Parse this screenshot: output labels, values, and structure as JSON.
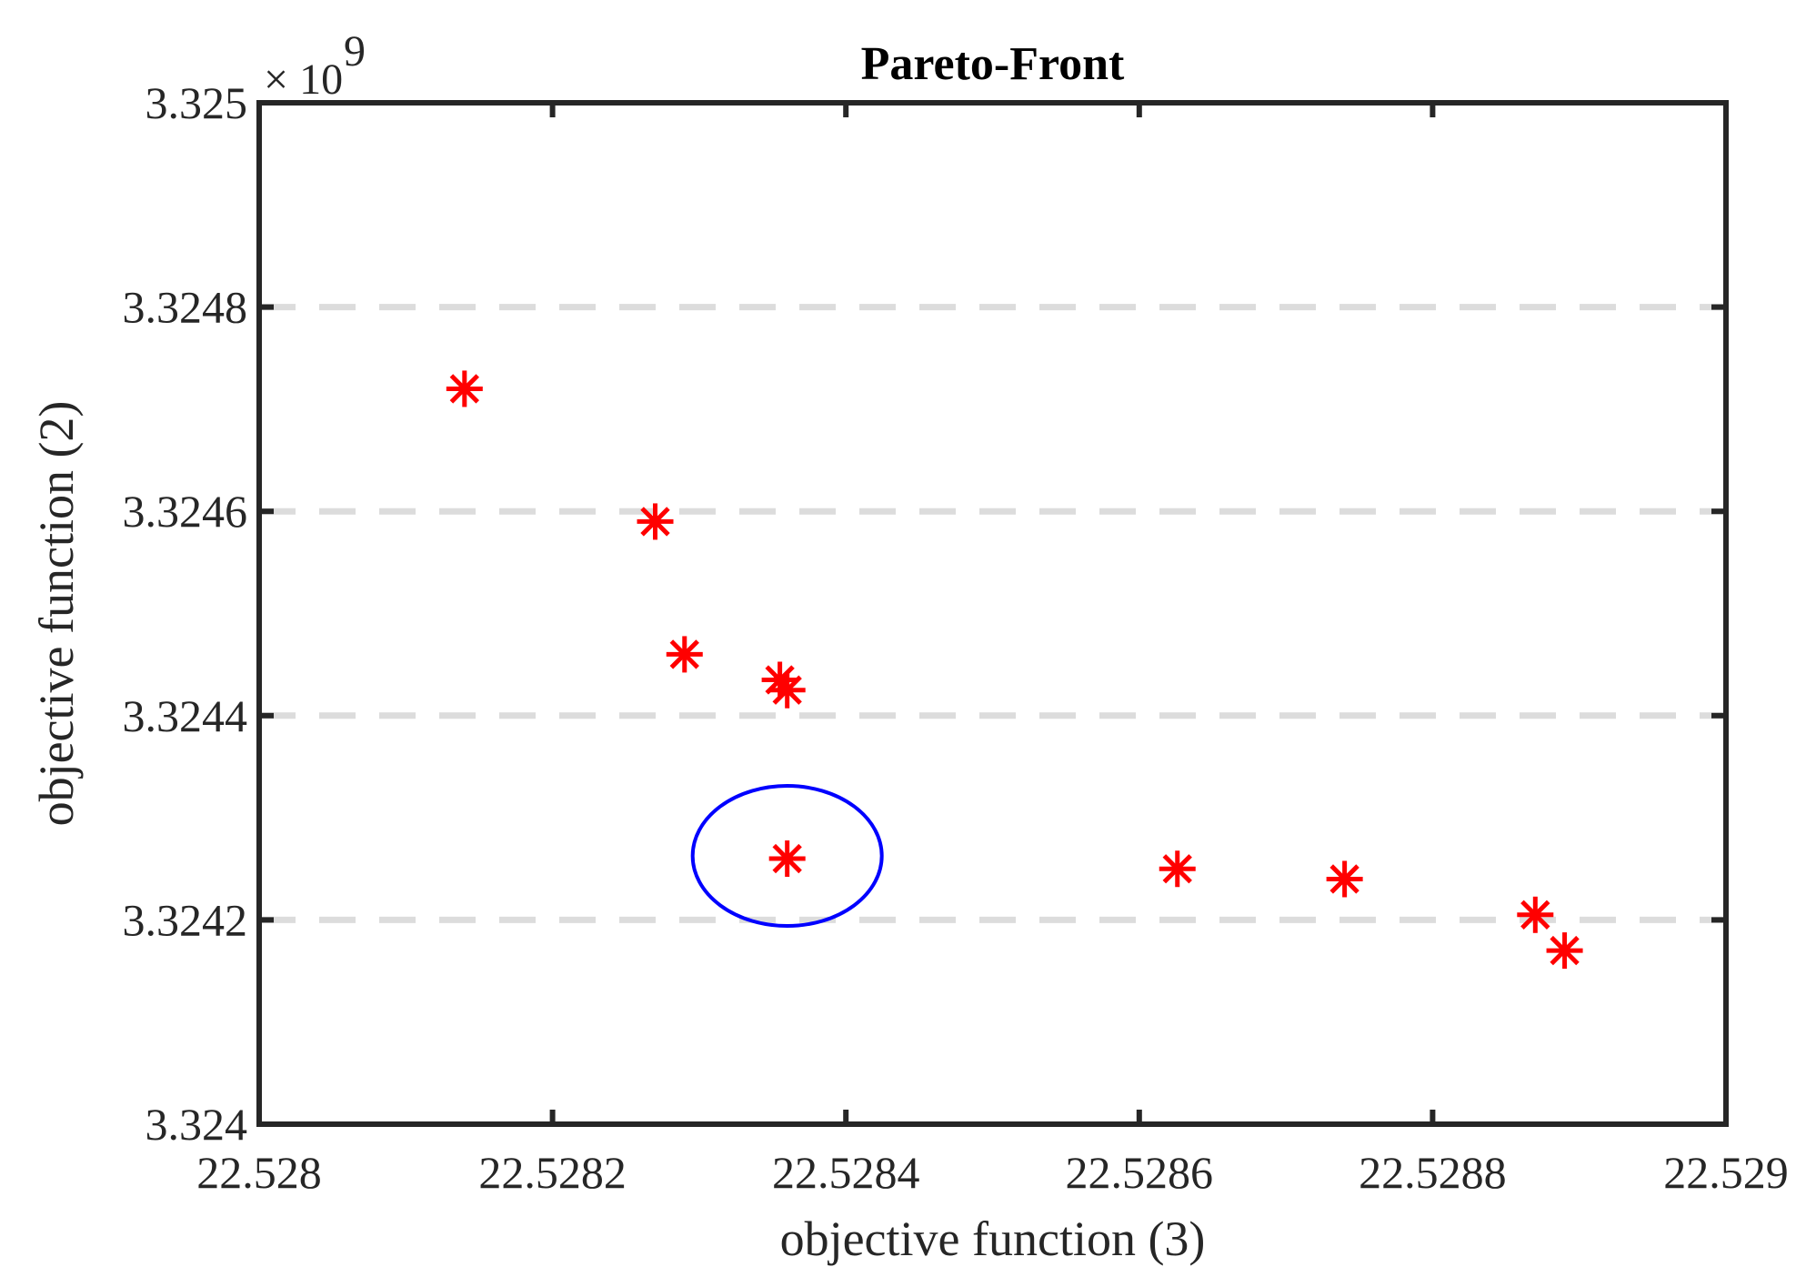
{
  "chart_data": {
    "type": "scatter",
    "title": "Pareto-Front",
    "xlabel": "objective function (3)",
    "ylabel": "objective function (2)",
    "xlim": [
      22.528,
      22.529
    ],
    "ylim": [
      3.324,
      3.325
    ],
    "y_multiplier_label": "× 10",
    "y_multiplier_exponent": "9",
    "x_ticks": [
      22.528,
      22.5282,
      22.5284,
      22.5286,
      22.5288,
      22.529
    ],
    "x_tick_labels": [
      "22.528",
      "22.5282",
      "22.5284",
      "22.5286",
      "22.5288",
      "22.529"
    ],
    "y_ticks": [
      3.324,
      3.3242,
      3.3244,
      3.3246,
      3.3248,
      3.325
    ],
    "y_tick_labels": [
      "3.324",
      "3.3242",
      "3.3244",
      "3.3246",
      "3.3248",
      "3.325"
    ],
    "grid": "y-dashed",
    "marker": "asterisk",
    "colors": {
      "points": "#ff0000",
      "highlight": "#0000ff",
      "grid": "#dcdcdc",
      "axes": "#262626"
    },
    "series": [
      {
        "x": [
          22.52814,
          22.52827,
          22.52829,
          22.528355,
          22.52836,
          22.52836,
          22.528626,
          22.52874,
          22.52887,
          22.52889
        ],
        "y": [
          3.32472,
          3.32459,
          3.32446,
          3.324435,
          3.324425,
          3.32426,
          3.32425,
          3.32424,
          3.324205,
          3.32417
        ]
      }
    ],
    "highlight": {
      "shape": "ellipse",
      "x": 22.52836,
      "y": 3.32426
    }
  }
}
